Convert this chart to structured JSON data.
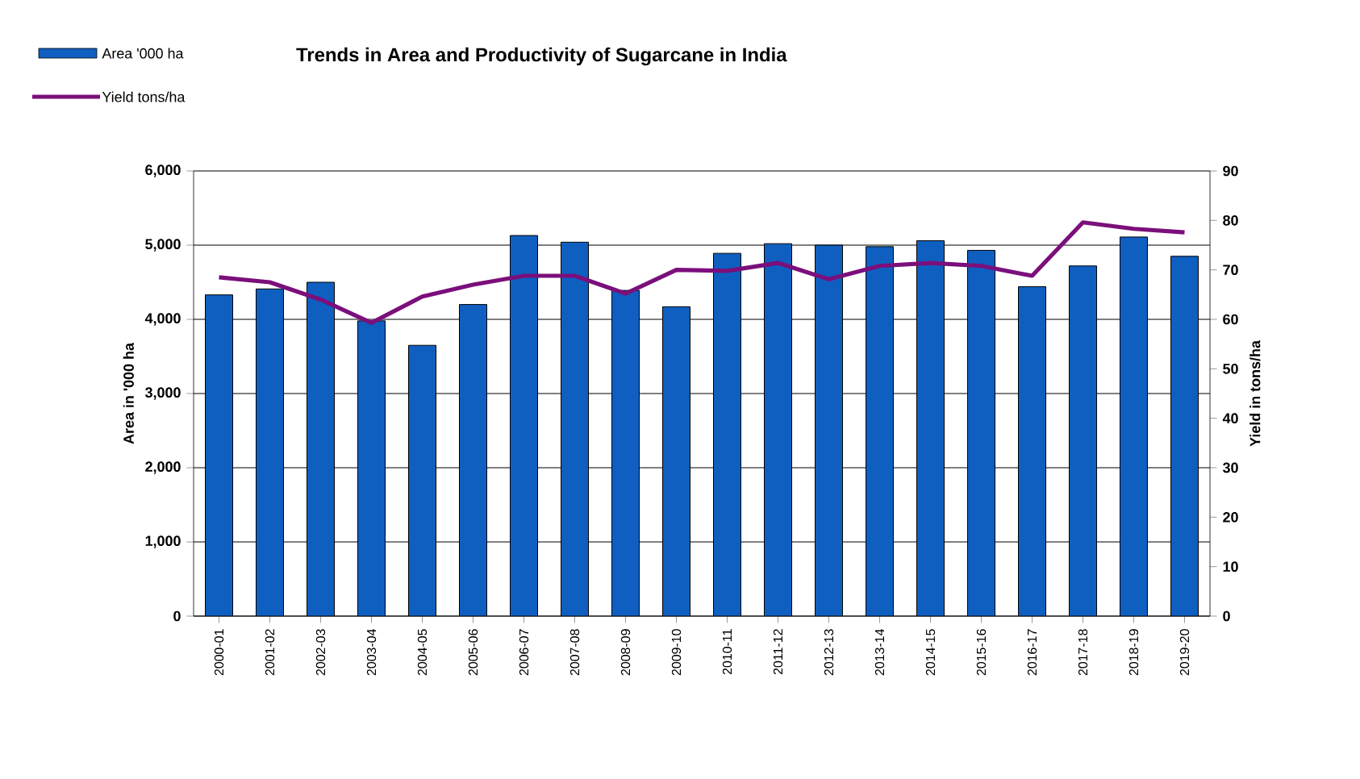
{
  "chart_data": {
    "type": "bar",
    "title": "Trends in Area and Productivity of Sugarcane in India",
    "categories": [
      "2000-01",
      "2001-02",
      "2002-03",
      "2003-04",
      "2004-05",
      "2005-06",
      "2006-07",
      "2007-08",
      "2008-09",
      "2009-10",
      "2010-11",
      "2011-12",
      "2012-13",
      "2013-14",
      "2014-15",
      "2015-16",
      "2016-17",
      "2017-18",
      "2018-19",
      "2019-20"
    ],
    "series": [
      {
        "name": "Area '000 ha",
        "color": "#0f5fc0",
        "values": [
          4330,
          4410,
          4500,
          3980,
          3650,
          4200,
          5130,
          5040,
          4390,
          4170,
          4890,
          5020,
          5000,
          4980,
          5060,
          4930,
          4440,
          4720,
          5110,
          4850
        ]
      },
      {
        "name": "Yield tons/ha",
        "type": "line",
        "axis": "y2",
        "color": "#7b0f7b",
        "values": [
          68.5,
          67.5,
          64,
          59.3,
          64.6,
          67,
          68.8,
          68.8,
          65.2,
          70,
          69.8,
          71.4,
          68.1,
          70.8,
          71.4,
          70.8,
          68.8,
          79.6,
          78.3,
          77.6
        ]
      }
    ],
    "ylabel": "Area in '000 ha",
    "y2label": "Yield in tons/ha",
    "ylim": [
      0,
      6000
    ],
    "yticks": [
      {
        "value": 0,
        "label": "0"
      },
      {
        "value": 1000,
        "label": "1,000"
      },
      {
        "value": 2000,
        "label": "2,000"
      },
      {
        "value": 3000,
        "label": "3,000"
      },
      {
        "value": 4000,
        "label": "4,000"
      },
      {
        "value": 5000,
        "label": "5,000"
      },
      {
        "value": 6000,
        "label": "6,000"
      }
    ],
    "y2lim": [
      0,
      90
    ],
    "y2ticks": [
      0,
      10,
      20,
      30,
      40,
      50,
      60,
      70,
      80,
      90
    ],
    "grid": "y",
    "legend": "top left",
    "marker": "none",
    "line_style": "solid"
  }
}
